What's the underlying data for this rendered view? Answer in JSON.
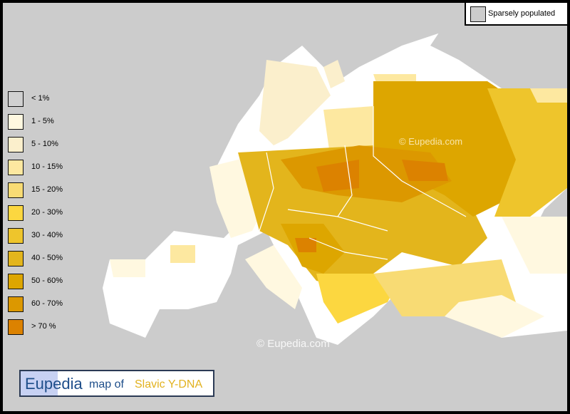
{
  "map": {
    "title": {
      "brand": "Eupedia",
      "connector": "map of",
      "subject": "Slavic Y-DNA"
    },
    "watermarks": [
      "© Eupedia.com",
      "©  Eupedia.com"
    ],
    "sparse_legend": {
      "label": "Sparsely populated",
      "color": "#cccccc"
    },
    "legend": [
      {
        "label": "< 1%",
        "color": "#d0d0d0"
      },
      {
        "label": "1 - 5%",
        "color": "#fff8e0"
      },
      {
        "label": "5 - 10%",
        "color": "#fbefcc"
      },
      {
        "label": "10 - 15%",
        "color": "#fde8a0"
      },
      {
        "label": "15 - 20%",
        "color": "#f8db74"
      },
      {
        "label": "20 - 30%",
        "color": "#fcd740"
      },
      {
        "label": "30 - 40%",
        "color": "#eec52c"
      },
      {
        "label": "40 - 50%",
        "color": "#e3b51c"
      },
      {
        "label": "50 - 60%",
        "color": "#dda600"
      },
      {
        "label": "60 - 70%",
        "color": "#dc9800"
      },
      {
        "label": "> 70 %",
        "color": "#dc8200"
      }
    ]
  }
}
